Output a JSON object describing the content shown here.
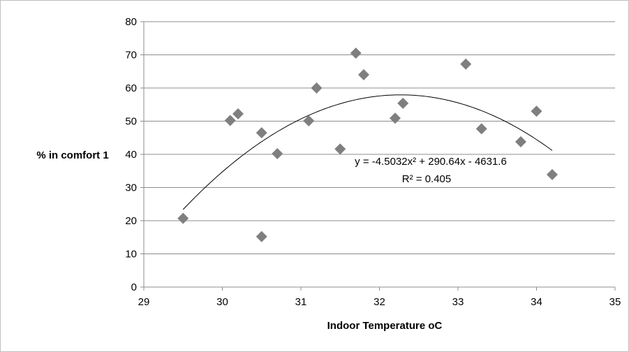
{
  "chart_data": {
    "type": "scatter",
    "title": "",
    "xlabel": "Indoor Temperature oC",
    "ylabel": "% in comfort 1",
    "xlim": [
      29,
      35
    ],
    "ylim": [
      0,
      80
    ],
    "xticks": [
      29,
      30,
      31,
      32,
      33,
      34,
      35
    ],
    "yticks": [
      0,
      10,
      20,
      30,
      40,
      50,
      60,
      70,
      80
    ],
    "grid": "horizontal",
    "legend": "none",
    "marker": "diamond",
    "colors": {
      "marker": "#7f7f7f",
      "trendline": "#000000",
      "grid": "#8c8c8c"
    },
    "series": [
      {
        "points": [
          [
            29.5,
            20.7
          ],
          [
            30.1,
            50.2
          ],
          [
            30.2,
            52.2
          ],
          [
            30.5,
            46.5
          ],
          [
            30.5,
            15.2
          ],
          [
            30.7,
            40.2
          ],
          [
            31.1,
            50.1
          ],
          [
            31.2,
            60.0
          ],
          [
            31.5,
            41.6
          ],
          [
            31.7,
            70.5
          ],
          [
            31.8,
            64.0
          ],
          [
            32.2,
            50.9
          ],
          [
            32.3,
            55.4
          ],
          [
            33.1,
            67.2
          ],
          [
            33.3,
            47.7
          ],
          [
            33.8,
            43.8
          ],
          [
            34.0,
            53.0
          ],
          [
            34.2,
            33.9
          ]
        ]
      }
    ],
    "trendline": {
      "type": "polynomial",
      "order": 2,
      "coefficients": [
        -4.5032,
        290.64,
        -4631.6
      ],
      "x_range": [
        29.5,
        34.2
      ],
      "equation_label": "y = -4.5032x² + 290.64x - 4631.6",
      "r2_label": "R² = 0.405"
    }
  }
}
